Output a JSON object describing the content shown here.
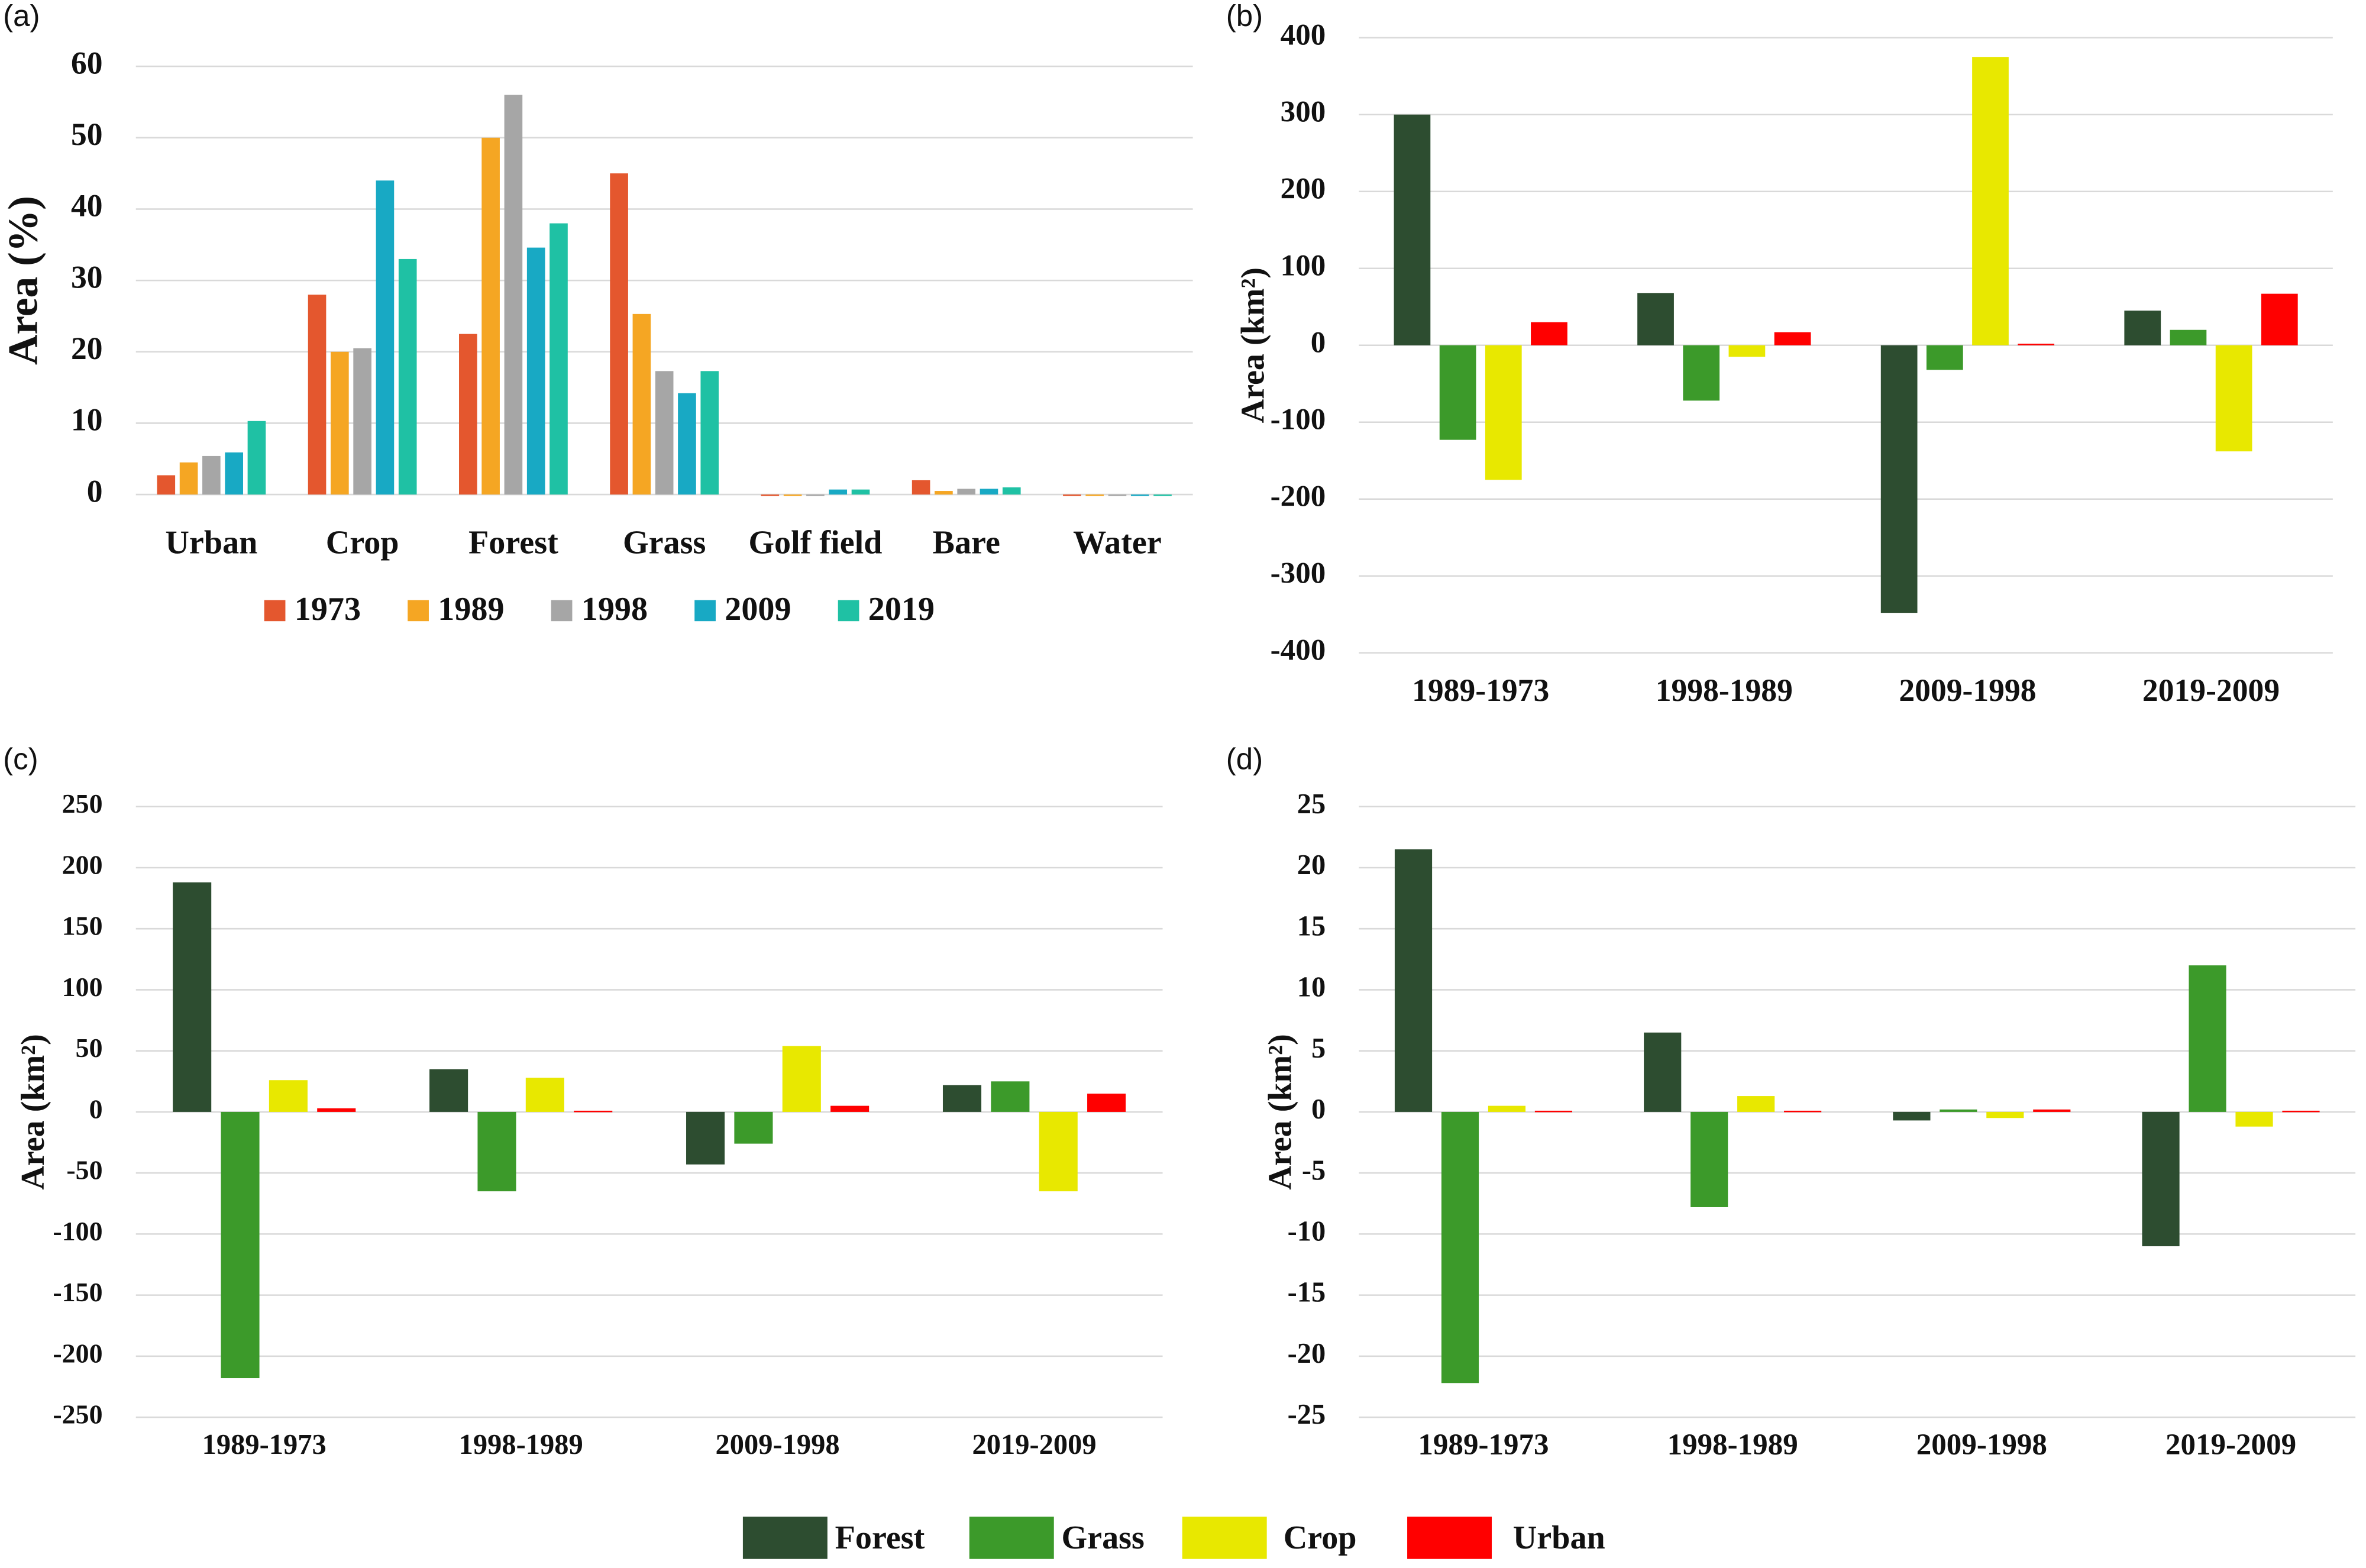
{
  "chart_data": [
    {
      "type": "bar",
      "panel": "(a)",
      "ylabel": "Area (%)",
      "categories": [
        "Urban",
        "Crop",
        "Forest",
        "Grass",
        "Golf field",
        "Bare",
        "Water"
      ],
      "series": [
        {
          "name": "1973",
          "color": "#e4572e",
          "values": [
            2.7,
            28,
            22.5,
            45,
            0,
            2,
            0
          ]
        },
        {
          "name": "1989",
          "color": "#f5a623",
          "values": [
            4.5,
            20,
            50,
            25.3,
            0,
            0.5,
            0
          ]
        },
        {
          "name": "1998",
          "color": "#a6a6a6",
          "values": [
            5.4,
            20.5,
            56,
            17.3,
            0,
            0.8,
            0
          ]
        },
        {
          "name": "2009",
          "color": "#18a9c4",
          "values": [
            5.9,
            44,
            34.6,
            14.2,
            0.7,
            0.8,
            0
          ]
        },
        {
          "name": "2019",
          "color": "#1fc1a4",
          "values": [
            10.3,
            33,
            38,
            17.3,
            0.7,
            1,
            0
          ]
        }
      ],
      "ylim": [
        0,
        60
      ],
      "yticks": [
        0,
        10,
        20,
        30,
        40,
        50,
        60
      ],
      "grid": true
    },
    {
      "type": "bar",
      "panel": "(b)",
      "ylabel": "Area (km²)",
      "categories": [
        "1989-1973",
        "1998-1989",
        "2009-1998",
        "2019-2009"
      ],
      "series": [
        {
          "name": "Forest",
          "color": "#2d4d30",
          "values": [
            300,
            68,
            -348,
            45
          ]
        },
        {
          "name": "Grass",
          "color": "#3c9a2a",
          "values": [
            -123,
            -72,
            -32,
            20
          ]
        },
        {
          "name": "Crop",
          "color": "#e8e800",
          "values": [
            -175,
            -15,
            375,
            -138
          ]
        },
        {
          "name": "Urban",
          "color": "#ff0000",
          "values": [
            30,
            17,
            2,
            67
          ]
        }
      ],
      "ylim": [
        -400,
        400
      ],
      "yticks": [
        -400,
        -300,
        -200,
        -100,
        0,
        100,
        200,
        300,
        400
      ],
      "grid": true
    },
    {
      "type": "bar",
      "panel": "(c)",
      "ylabel": "Area (km²)",
      "categories": [
        "1989-1973",
        "1998-1989",
        "2009-1998",
        "2019-2009"
      ],
      "series": [
        {
          "name": "Forest",
          "color": "#2d4d30",
          "values": [
            188,
            35,
            -43,
            22
          ]
        },
        {
          "name": "Grass",
          "color": "#3c9a2a",
          "values": [
            -218,
            -65,
            -26,
            25
          ]
        },
        {
          "name": "Crop",
          "color": "#e8e800",
          "values": [
            26,
            28,
            54,
            -65
          ]
        },
        {
          "name": "Urban",
          "color": "#ff0000",
          "values": [
            3,
            1,
            5,
            15
          ]
        }
      ],
      "ylim": [
        -250,
        250
      ],
      "yticks": [
        -250,
        -200,
        -150,
        -100,
        -50,
        0,
        50,
        100,
        150,
        200,
        250
      ],
      "grid": true
    },
    {
      "type": "bar",
      "panel": "(d)",
      "ylabel": "Area (km²)",
      "categories": [
        "1989-1973",
        "1998-1989",
        "2009-1998",
        "2019-2009"
      ],
      "series": [
        {
          "name": "Forest",
          "color": "#2d4d30",
          "values": [
            21.5,
            6.5,
            -0.7,
            -11
          ]
        },
        {
          "name": "Grass",
          "color": "#3c9a2a",
          "values": [
            -22.2,
            -7.8,
            0.2,
            12
          ]
        },
        {
          "name": "Crop",
          "color": "#e8e800",
          "values": [
            0.5,
            1.3,
            -0.5,
            -1.2
          ]
        },
        {
          "name": "Urban",
          "color": "#ff0000",
          "values": [
            0.1,
            0.1,
            0.2,
            0.1
          ]
        }
      ],
      "ylim": [
        -25,
        25
      ],
      "yticks": [
        -25,
        -20,
        -15,
        -10,
        -5,
        0,
        5,
        10,
        15,
        20,
        25
      ],
      "grid": true
    }
  ]
}
